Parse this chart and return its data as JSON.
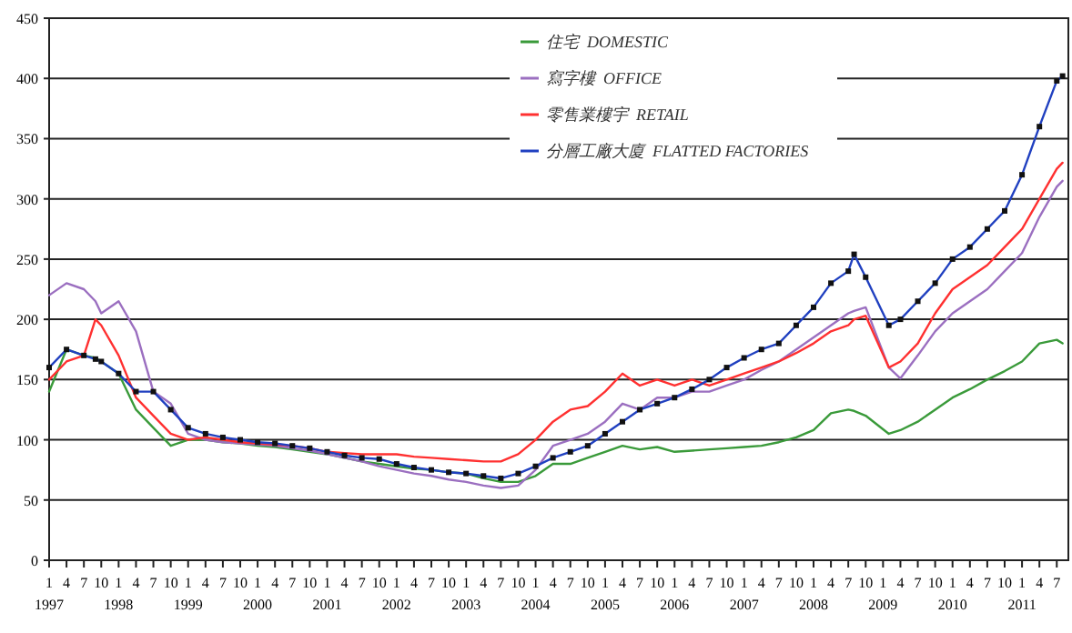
{
  "chart_data": {
    "type": "line",
    "x": [
      "1997-01",
      "1997-04",
      "1997-07",
      "1997-09",
      "1997-10",
      "1998-01",
      "1998-04",
      "1998-07",
      "1998-10",
      "1999-01",
      "1999-04",
      "1999-07",
      "1999-10",
      "2000-01",
      "2000-04",
      "2000-07",
      "2000-10",
      "2001-01",
      "2001-04",
      "2001-07",
      "2001-10",
      "2002-01",
      "2002-04",
      "2002-07",
      "2002-10",
      "2003-01",
      "2003-04",
      "2003-07",
      "2003-10",
      "2004-01",
      "2004-04",
      "2004-07",
      "2004-10",
      "2005-01",
      "2005-04",
      "2005-07",
      "2005-10",
      "2006-01",
      "2006-04",
      "2006-07",
      "2006-10",
      "2007-01",
      "2007-04",
      "2007-07",
      "2007-10",
      "2008-01",
      "2008-04",
      "2008-07",
      "2008-08",
      "2008-10",
      "2009-02",
      "2009-04",
      "2009-07",
      "2009-10",
      "2010-01",
      "2010-04",
      "2010-07",
      "2010-10",
      "2011-01",
      "2011-04",
      "2011-07",
      "2011-08"
    ],
    "series": [
      {
        "name": "住宅  DOMESTIC",
        "color": "#3a9a3a",
        "values": [
          140,
          175,
          170,
          168,
          165,
          155,
          125,
          110,
          95,
          100,
          100,
          98,
          97,
          95,
          94,
          92,
          90,
          88,
          85,
          82,
          80,
          78,
          76,
          75,
          73,
          72,
          68,
          65,
          65,
          70,
          80,
          80,
          85,
          90,
          95,
          92,
          94,
          90,
          91,
          92,
          93,
          94,
          95,
          98,
          102,
          108,
          122,
          125,
          124,
          120,
          105,
          108,
          115,
          125,
          135,
          142,
          150,
          157,
          165,
          180,
          183,
          180
        ]
      },
      {
        "name": "寫字樓  OFFICE",
        "color": "#9b6fc0",
        "values": [
          220,
          230,
          225,
          215,
          205,
          215,
          190,
          140,
          130,
          105,
          100,
          98,
          97,
          96,
          95,
          93,
          91,
          88,
          85,
          82,
          78,
          75,
          72,
          70,
          67,
          65,
          62,
          60,
          62,
          75,
          95,
          100,
          105,
          115,
          130,
          125,
          135,
          135,
          140,
          140,
          145,
          150,
          158,
          165,
          175,
          185,
          195,
          205,
          207,
          210,
          160,
          151,
          170,
          190,
          205,
          215,
          225,
          240,
          255,
          285,
          310,
          315
        ]
      },
      {
        "name": "零售業樓宇  RETAIL",
        "color": "#ff3030",
        "values": [
          150,
          165,
          170,
          200,
          195,
          170,
          135,
          120,
          105,
          100,
          102,
          100,
          98,
          97,
          96,
          95,
          93,
          90,
          89,
          88,
          88,
          88,
          86,
          85,
          84,
          83,
          82,
          82,
          88,
          100,
          115,
          125,
          128,
          140,
          155,
          145,
          150,
          145,
          150,
          145,
          150,
          155,
          160,
          165,
          172,
          180,
          190,
          195,
          200,
          203,
          160,
          165,
          180,
          205,
          225,
          235,
          245,
          260,
          275,
          300,
          325,
          330
        ]
      },
      {
        "name": "分層工廠大廈  FLATTED FACTORIES",
        "color": "#2040c0",
        "marker": "square",
        "values": [
          160,
          175,
          170,
          167,
          165,
          155,
          140,
          140,
          125,
          110,
          105,
          102,
          100,
          98,
          97,
          95,
          93,
          90,
          87,
          85,
          84,
          80,
          77,
          75,
          73,
          72,
          70,
          68,
          72,
          78,
          85,
          90,
          95,
          105,
          115,
          125,
          130,
          135,
          142,
          150,
          160,
          168,
          175,
          180,
          195,
          210,
          230,
          240,
          254,
          235,
          195,
          200,
          215,
          230,
          250,
          260,
          275,
          290,
          320,
          360,
          398,
          402
        ]
      }
    ],
    "xlim": [
      "1997-01",
      "2011-09"
    ],
    "xticks": [
      {
        "value": "1997-01",
        "label": "1\n1997"
      },
      {
        "value": "1997-04",
        "label": "4"
      },
      {
        "value": "1997-07",
        "label": "7"
      },
      {
        "value": "1997-10",
        "label": "10"
      },
      {
        "value": "1998-01",
        "label": "1\n1998"
      },
      {
        "value": "1998-04",
        "label": "4"
      },
      {
        "value": "1998-07",
        "label": "7"
      },
      {
        "value": "1998-10",
        "label": "10"
      },
      {
        "value": "1999-01",
        "label": "1\n1999"
      },
      {
        "value": "1999-04",
        "label": "4"
      },
      {
        "value": "1999-07",
        "label": "7"
      },
      {
        "value": "1999-10",
        "label": "10"
      },
      {
        "value": "2000-01",
        "label": "1\n2000"
      },
      {
        "value": "2000-04",
        "label": "4"
      },
      {
        "value": "2000-07",
        "label": "7"
      },
      {
        "value": "2000-10",
        "label": "10"
      },
      {
        "value": "2001-01",
        "label": "1\n2001"
      },
      {
        "value": "2001-04",
        "label": "4"
      },
      {
        "value": "2001-07",
        "label": "7"
      },
      {
        "value": "2001-10",
        "label": "10"
      },
      {
        "value": "2002-01",
        "label": "1\n2002"
      },
      {
        "value": "2002-04",
        "label": "4"
      },
      {
        "value": "2002-07",
        "label": "7"
      },
      {
        "value": "2002-10",
        "label": "10"
      },
      {
        "value": "2003-01",
        "label": "1\n2003"
      },
      {
        "value": "2003-04",
        "label": "4"
      },
      {
        "value": "2003-07",
        "label": "7"
      },
      {
        "value": "2003-10",
        "label": "10"
      },
      {
        "value": "2004-01",
        "label": "1\n2004"
      },
      {
        "value": "2004-04",
        "label": "4"
      },
      {
        "value": "2004-07",
        "label": "7"
      },
      {
        "value": "2004-10",
        "label": "10"
      },
      {
        "value": "2005-01",
        "label": "1\n2005"
      },
      {
        "value": "2005-04",
        "label": "4"
      },
      {
        "value": "2005-07",
        "label": "7"
      },
      {
        "value": "2005-10",
        "label": "10"
      },
      {
        "value": "2006-01",
        "label": "1\n2006"
      },
      {
        "value": "2006-04",
        "label": "4"
      },
      {
        "value": "2006-07",
        "label": "7"
      },
      {
        "value": "2006-10",
        "label": "10"
      },
      {
        "value": "2007-01",
        "label": "1\n2007"
      },
      {
        "value": "2007-04",
        "label": "4"
      },
      {
        "value": "2007-07",
        "label": "7"
      },
      {
        "value": "2007-10",
        "label": "10"
      },
      {
        "value": "2008-01",
        "label": "1\n2008"
      },
      {
        "value": "2008-04",
        "label": "4"
      },
      {
        "value": "2008-07",
        "label": "7"
      },
      {
        "value": "2008-10",
        "label": "10"
      },
      {
        "value": "2009-01",
        "label": "1\n2009"
      },
      {
        "value": "2009-04",
        "label": "4"
      },
      {
        "value": "2009-07",
        "label": "7"
      },
      {
        "value": "2009-10",
        "label": "10"
      },
      {
        "value": "2010-01",
        "label": "1\n2010"
      },
      {
        "value": "2010-04",
        "label": "4"
      },
      {
        "value": "2010-07",
        "label": "7"
      },
      {
        "value": "2010-10",
        "label": "10"
      },
      {
        "value": "2011-01",
        "label": "1\n2011"
      },
      {
        "value": "2011-04",
        "label": "4"
      },
      {
        "value": "2011-07",
        "label": "7"
      }
    ],
    "ylim": [
      0,
      450
    ],
    "yticks": [
      0,
      50,
      100,
      150,
      200,
      250,
      300,
      350,
      400,
      450
    ],
    "grid": "y",
    "legend": "top",
    "line_style": "solid"
  }
}
